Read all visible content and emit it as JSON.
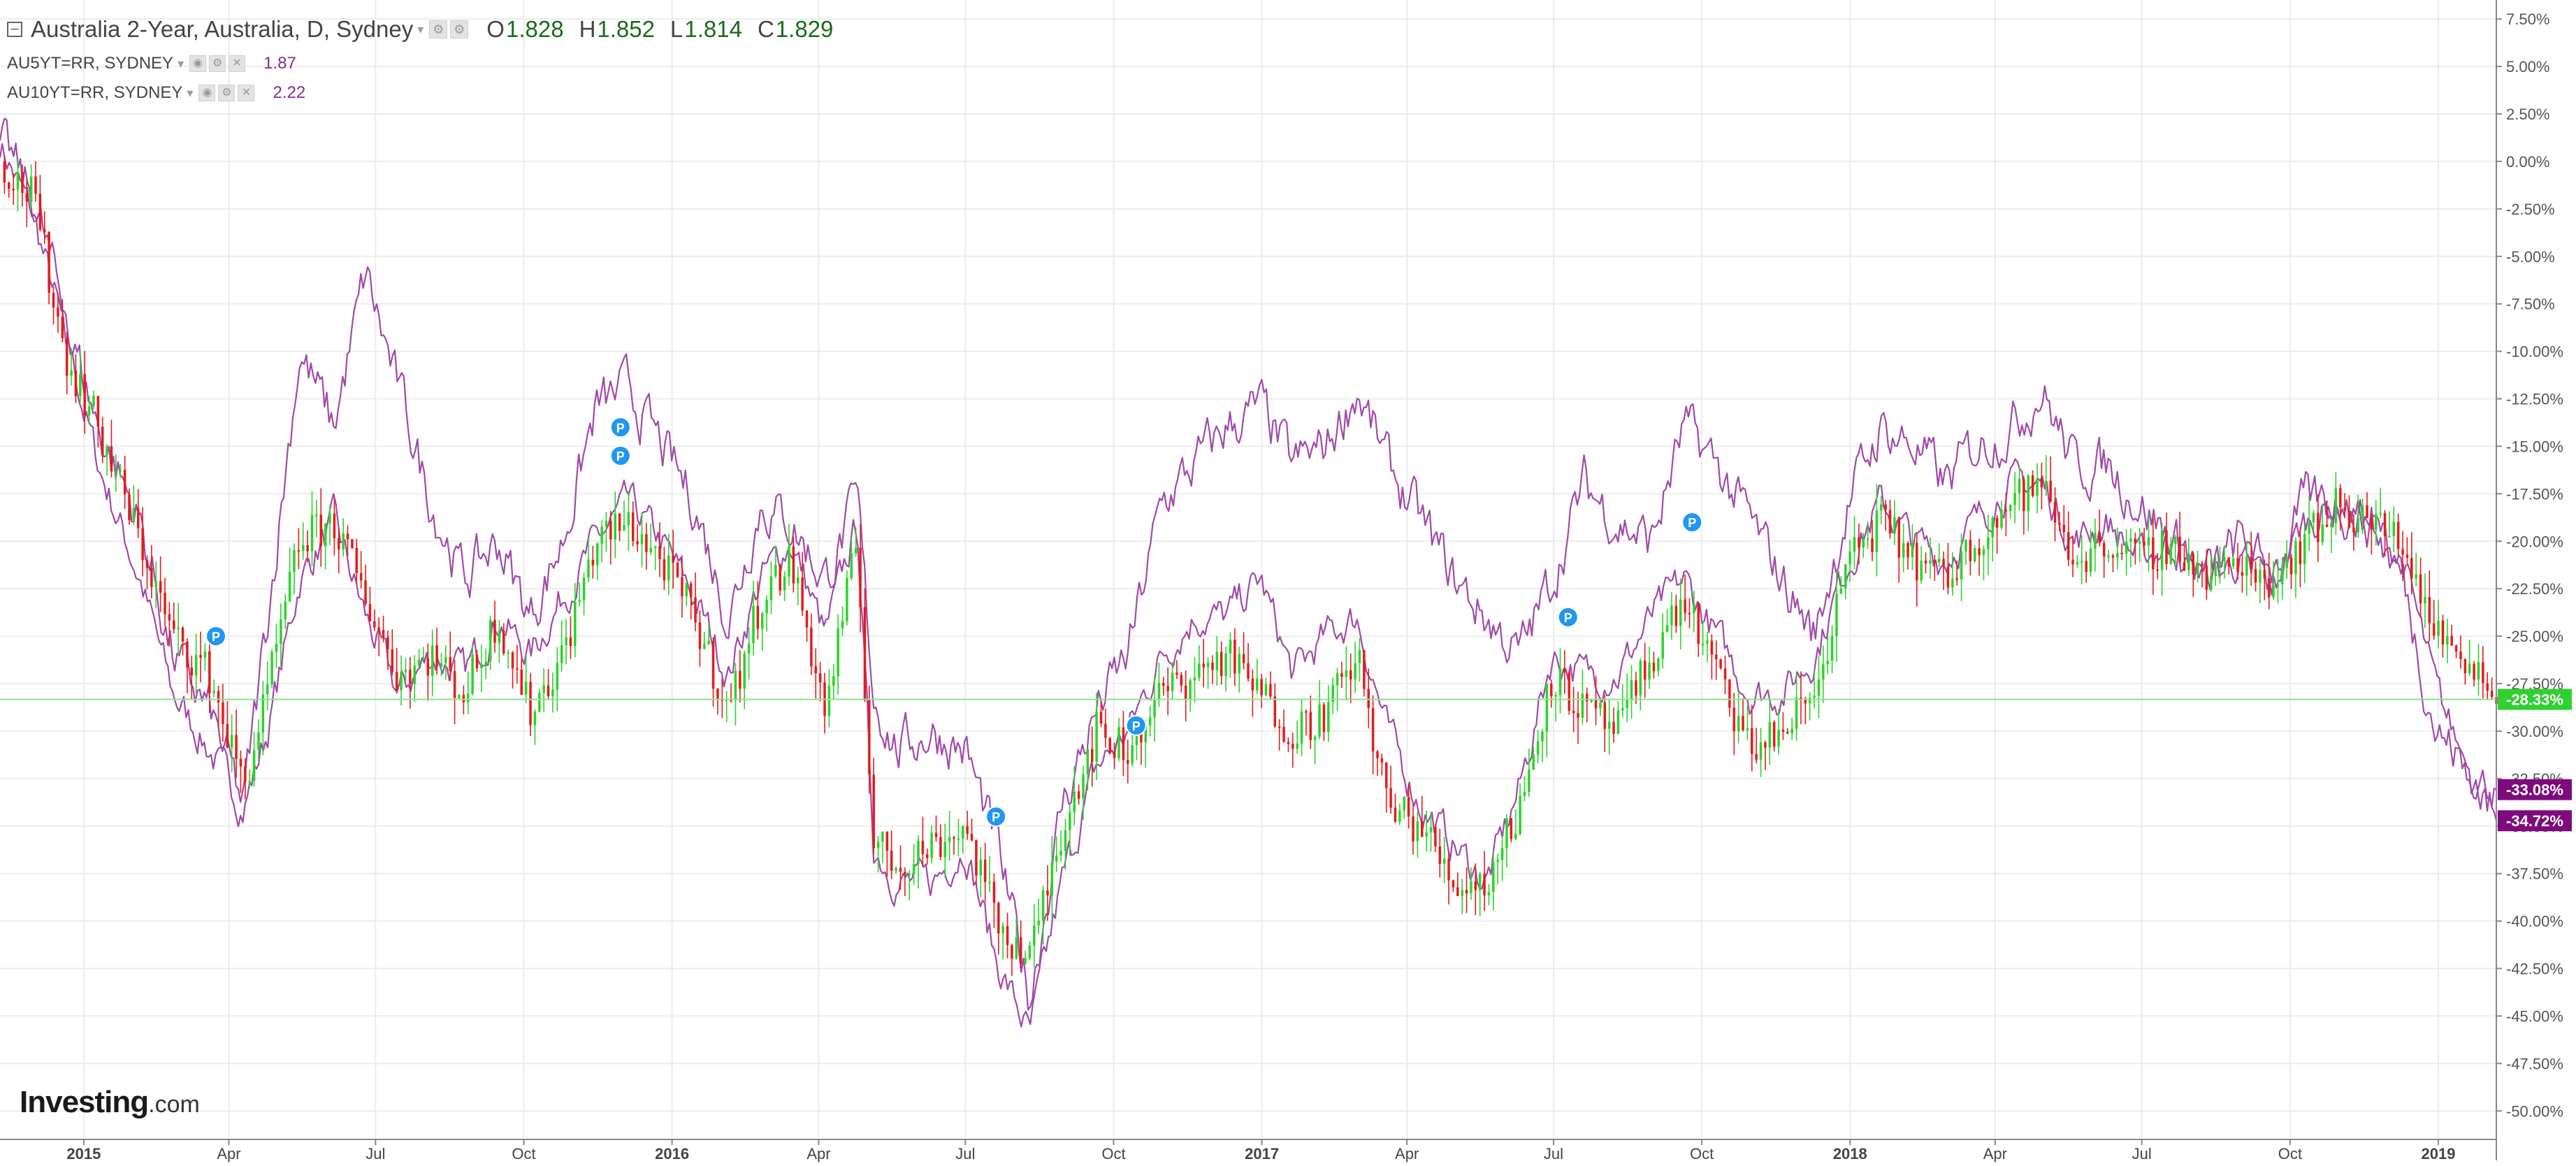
{
  "legend": {
    "main": {
      "title": "Australia 2-Year, Australia, D, Sydney",
      "o_label": "O",
      "o": "1.828",
      "h_label": "H",
      "h": "1.852",
      "l_label": "L",
      "l": "1.814",
      "c_label": "C",
      "c": "1.829"
    },
    "series": [
      {
        "name": "AU5YT=RR, SYDNEY",
        "value": "1.87",
        "color": "#8b2a8b"
      },
      {
        "name": "AU10YT=RR, SYDNEY",
        "value": "2.22",
        "color": "#8b2a8b"
      }
    ]
  },
  "logo": {
    "brand": "Investing",
    "suffix": ".com"
  },
  "chart_data": {
    "type": "line",
    "y_unit": "%",
    "ylim": [
      -51.5,
      8.5
    ],
    "y_ticks": [
      "7.50%",
      "5.00%",
      "2.50%",
      "0.00%",
      "-2.50%",
      "-5.00%",
      "-7.50%",
      "-10.00%",
      "-12.50%",
      "-15.00%",
      "-17.50%",
      "-20.00%",
      "-22.50%",
      "-25.00%",
      "-27.50%",
      "-30.00%",
      "-32.50%",
      "-35.00%",
      "-37.50%",
      "-40.00%",
      "-42.50%",
      "-45.00%",
      "-47.50%",
      "-50.00%"
    ],
    "y_tick_values": [
      7.5,
      5,
      2.5,
      0,
      -2.5,
      -5,
      -7.5,
      -10,
      -12.5,
      -15,
      -17.5,
      -20,
      -22.5,
      -25,
      -27.5,
      -30,
      -32.5,
      -35,
      -37.5,
      -40,
      -42.5,
      -45,
      -47.5,
      -50
    ],
    "xlim": [
      "2014-11-10",
      "2019-02-06"
    ],
    "x_ticks": [
      {
        "date": "2015-01-01",
        "label": "2015",
        "bold": true
      },
      {
        "date": "2015-04-01",
        "label": "Apr",
        "bold": false
      },
      {
        "date": "2015-07-01",
        "label": "Jul",
        "bold": false
      },
      {
        "date": "2015-10-01",
        "label": "Oct",
        "bold": false
      },
      {
        "date": "2016-01-01",
        "label": "2016",
        "bold": true
      },
      {
        "date": "2016-04-01",
        "label": "Apr",
        "bold": false
      },
      {
        "date": "2016-07-01",
        "label": "Jul",
        "bold": false
      },
      {
        "date": "2016-10-01",
        "label": "Oct",
        "bold": false
      },
      {
        "date": "2017-01-01",
        "label": "2017",
        "bold": true
      },
      {
        "date": "2017-04-01",
        "label": "Apr",
        "bold": false
      },
      {
        "date": "2017-07-01",
        "label": "Jul",
        "bold": false
      },
      {
        "date": "2017-10-01",
        "label": "Oct",
        "bold": false
      },
      {
        "date": "2018-01-01",
        "label": "2018",
        "bold": true
      },
      {
        "date": "2018-04-01",
        "label": "Apr",
        "bold": false
      },
      {
        "date": "2018-07-01",
        "label": "Jul",
        "bold": false
      },
      {
        "date": "2018-10-01",
        "label": "Oct",
        "bold": false
      },
      {
        "date": "2019-01-01",
        "label": "2019",
        "bold": true
      }
    ],
    "grid": true,
    "candle_colors": {
      "up": "#2ad42a",
      "down": "#e41c1c"
    },
    "series": [
      {
        "name": "Australia 2-Year",
        "style": "candles",
        "dates": [
          "2014-11-10",
          "2014-12-01",
          "2014-12-20",
          "2015-01-10",
          "2015-02-05",
          "2015-02-25",
          "2015-03-20",
          "2015-04-10",
          "2015-04-25",
          "2015-05-15",
          "2015-06-05",
          "2015-06-25",
          "2015-07-15",
          "2015-08-05",
          "2015-08-25",
          "2015-09-15",
          "2015-10-05",
          "2015-10-25",
          "2015-11-15",
          "2015-12-05",
          "2015-12-25",
          "2016-01-15",
          "2016-02-05",
          "2016-02-25",
          "2016-03-15",
          "2016-04-05",
          "2016-04-25",
          "2016-05-05",
          "2016-05-20",
          "2016-06-10",
          "2016-07-01",
          "2016-07-20",
          "2016-08-10",
          "2016-08-30",
          "2016-09-20",
          "2016-10-10",
          "2016-10-31",
          "2016-11-20",
          "2016-12-10",
          "2016-12-31",
          "2017-01-20",
          "2017-02-10",
          "2017-03-01",
          "2017-03-20",
          "2017-04-10",
          "2017-04-30",
          "2017-05-20",
          "2017-06-10",
          "2017-06-30",
          "2017-07-20",
          "2017-08-10",
          "2017-08-31",
          "2017-09-20",
          "2017-10-10",
          "2017-10-31",
          "2017-11-20",
          "2017-12-10",
          "2017-12-31",
          "2018-01-20",
          "2018-02-10",
          "2018-03-01",
          "2018-03-20",
          "2018-04-10",
          "2018-04-30",
          "2018-05-20",
          "2018-06-10",
          "2018-06-30",
          "2018-07-20",
          "2018-08-10",
          "2018-08-31",
          "2018-09-20",
          "2018-10-10",
          "2018-10-31",
          "2018-11-20",
          "2018-12-10",
          "2018-12-31",
          "2019-01-20",
          "2019-02-06"
        ],
        "values": [
          0,
          -2,
          -10,
          -14,
          -20,
          -25,
          -27,
          -33,
          -28,
          -20,
          -19,
          -23,
          -27,
          -26,
          -28,
          -24,
          -29,
          -26,
          -20,
          -19,
          -21,
          -24,
          -29,
          -23,
          -21,
          -29,
          -20,
          -36,
          -37,
          -36,
          -35,
          -40,
          -42,
          -35,
          -30,
          -31,
          -28,
          -27,
          -26,
          -28,
          -30,
          -29,
          -26,
          -34,
          -35,
          -38,
          -38,
          -34,
          -27,
          -29,
          -30,
          -26,
          -23,
          -27,
          -31,
          -30,
          -28,
          -21,
          -19,
          -21,
          -22,
          -20,
          -18,
          -17,
          -21,
          -20,
          -21,
          -20,
          -22,
          -21,
          -22,
          -20,
          -18,
          -19,
          -20,
          -25,
          -26,
          -28.33
        ]
      },
      {
        "name": "AU5YT=RR, SYDNEY",
        "style": "line",
        "color": "#a04aa8",
        "dates": [
          "2014-11-10",
          "2014-12-01",
          "2014-12-20",
          "2015-01-10",
          "2015-02-05",
          "2015-02-25",
          "2015-03-20",
          "2015-04-10",
          "2015-04-25",
          "2015-05-15",
          "2015-06-05",
          "2015-06-25",
          "2015-07-15",
          "2015-08-05",
          "2015-08-25",
          "2015-09-15",
          "2015-10-05",
          "2015-10-25",
          "2015-11-15",
          "2015-12-05",
          "2015-12-25",
          "2016-01-15",
          "2016-02-05",
          "2016-02-25",
          "2016-03-15",
          "2016-04-05",
          "2016-04-25",
          "2016-05-05",
          "2016-05-20",
          "2016-06-10",
          "2016-07-01",
          "2016-07-20",
          "2016-08-10",
          "2016-08-30",
          "2016-09-20",
          "2016-10-10",
          "2016-10-31",
          "2016-11-20",
          "2016-12-10",
          "2016-12-31",
          "2017-01-20",
          "2017-02-10",
          "2017-03-01",
          "2017-03-20",
          "2017-04-10",
          "2017-04-30",
          "2017-05-20",
          "2017-06-10",
          "2017-06-30",
          "2017-07-20",
          "2017-08-10",
          "2017-08-31",
          "2017-09-20",
          "2017-10-10",
          "2017-10-31",
          "2017-11-20",
          "2017-12-10",
          "2017-12-31",
          "2018-01-20",
          "2018-02-10",
          "2018-03-01",
          "2018-03-20",
          "2018-04-10",
          "2018-04-30",
          "2018-05-20",
          "2018-06-10",
          "2018-06-30",
          "2018-07-20",
          "2018-08-10",
          "2018-08-31",
          "2018-09-20",
          "2018-10-10",
          "2018-10-31",
          "2018-11-20",
          "2018-12-10",
          "2018-12-31",
          "2019-01-20",
          "2019-02-06"
        ],
        "values": [
          1,
          -3,
          -9,
          -16,
          -22,
          -28,
          -31,
          -34,
          -30,
          -22,
          -19,
          -24,
          -28,
          -26,
          -27,
          -24,
          -26,
          -23,
          -20,
          -18,
          -20,
          -23,
          -27,
          -22,
          -20,
          -25,
          -19,
          -36,
          -38,
          -38,
          -36,
          -42,
          -46,
          -38,
          -32,
          -30,
          -26,
          -24,
          -24,
          -22,
          -27,
          -25,
          -24,
          -30,
          -34,
          -36,
          -38,
          -33,
          -26,
          -27,
          -27,
          -24,
          -22,
          -25,
          -28,
          -28,
          -26,
          -21,
          -18,
          -20,
          -21,
          -19,
          -17,
          -17,
          -20,
          -19,
          -21,
          -20,
          -22,
          -21,
          -22,
          -19,
          -18,
          -19,
          -21,
          -28,
          -32,
          -33.08
        ]
      },
      {
        "name": "AU10YT=RR, SYDNEY",
        "style": "line",
        "color": "#a04aa8",
        "dates": [
          "2014-11-10",
          "2014-12-01",
          "2014-12-20",
          "2015-01-10",
          "2015-02-05",
          "2015-02-25",
          "2015-03-20",
          "2015-04-10",
          "2015-04-25",
          "2015-05-15",
          "2015-06-05",
          "2015-06-25",
          "2015-07-15",
          "2015-08-05",
          "2015-08-25",
          "2015-09-15",
          "2015-10-05",
          "2015-10-25",
          "2015-11-15",
          "2015-12-05",
          "2015-12-25",
          "2016-01-15",
          "2016-02-05",
          "2016-02-25",
          "2016-03-15",
          "2016-04-05",
          "2016-04-25",
          "2016-05-05",
          "2016-05-20",
          "2016-06-10",
          "2016-07-01",
          "2016-07-20",
          "2016-08-10",
          "2016-08-30",
          "2016-09-20",
          "2016-10-10",
          "2016-10-31",
          "2016-11-20",
          "2016-12-10",
          "2016-12-31",
          "2017-01-20",
          "2017-02-10",
          "2017-03-01",
          "2017-03-20",
          "2017-04-10",
          "2017-04-30",
          "2017-05-20",
          "2017-06-10",
          "2017-06-30",
          "2017-07-20",
          "2017-08-10",
          "2017-08-31",
          "2017-09-20",
          "2017-10-10",
          "2017-10-31",
          "2017-11-20",
          "2017-12-10",
          "2017-12-31",
          "2018-01-20",
          "2018-02-10",
          "2018-03-01",
          "2018-03-20",
          "2018-04-10",
          "2018-04-30",
          "2018-05-20",
          "2018-06-10",
          "2018-06-30",
          "2018-07-20",
          "2018-08-10",
          "2018-08-31",
          "2018-09-20",
          "2018-10-10",
          "2018-10-31",
          "2018-11-20",
          "2018-12-10",
          "2018-12-31",
          "2019-01-20",
          "2019-02-06"
        ],
        "values": [
          1,
          -2,
          -8,
          -14,
          -19,
          -26,
          -29,
          -34,
          -24,
          -10,
          -14,
          -6,
          -12,
          -18,
          -22,
          -20,
          -24,
          -20,
          -13,
          -12,
          -15,
          -18,
          -24,
          -18,
          -19,
          -22,
          -18,
          -28,
          -31,
          -30,
          -31,
          -36,
          -44,
          -34,
          -29,
          -26,
          -18,
          -16,
          -14,
          -13,
          -16,
          -15,
          -12,
          -16,
          -19,
          -22,
          -24,
          -26,
          -22,
          -17,
          -19,
          -20,
          -14,
          -16,
          -19,
          -22,
          -25,
          -18,
          -14,
          -15,
          -17,
          -15,
          -14,
          -12,
          -16,
          -16,
          -18,
          -20,
          -22,
          -20,
          -22,
          -18,
          -18,
          -19,
          -22,
          -30,
          -32,
          -34.72
        ]
      }
    ],
    "last_value_labels": [
      {
        "series": "Australia 2-Year",
        "value": -28.33,
        "text": "-28.33%",
        "bg": "#2fd02f"
      },
      {
        "series": "AU5YT=RR, SYDNEY",
        "value": -33.08,
        "text": "-33.08%",
        "bg": "#7e0a7e"
      },
      {
        "series": "AU10YT=RR, SYDNEY",
        "value": -34.72,
        "text": "-34.72%",
        "bg": "#7e0a7e"
      }
    ],
    "event_markers": [
      {
        "date": "2015-03-24",
        "value": -25.0,
        "label": "P"
      },
      {
        "date": "2015-11-30",
        "value": -14.0,
        "label": "P"
      },
      {
        "date": "2015-11-30",
        "value": -15.5,
        "label": "P"
      },
      {
        "date": "2016-07-20",
        "value": -34.5,
        "label": "P"
      },
      {
        "date": "2016-10-15",
        "value": -29.7,
        "label": "P"
      },
      {
        "date": "2017-07-10",
        "value": -24.0,
        "label": "P"
      },
      {
        "date": "2017-09-25",
        "value": -19.0,
        "label": "P"
      }
    ]
  }
}
